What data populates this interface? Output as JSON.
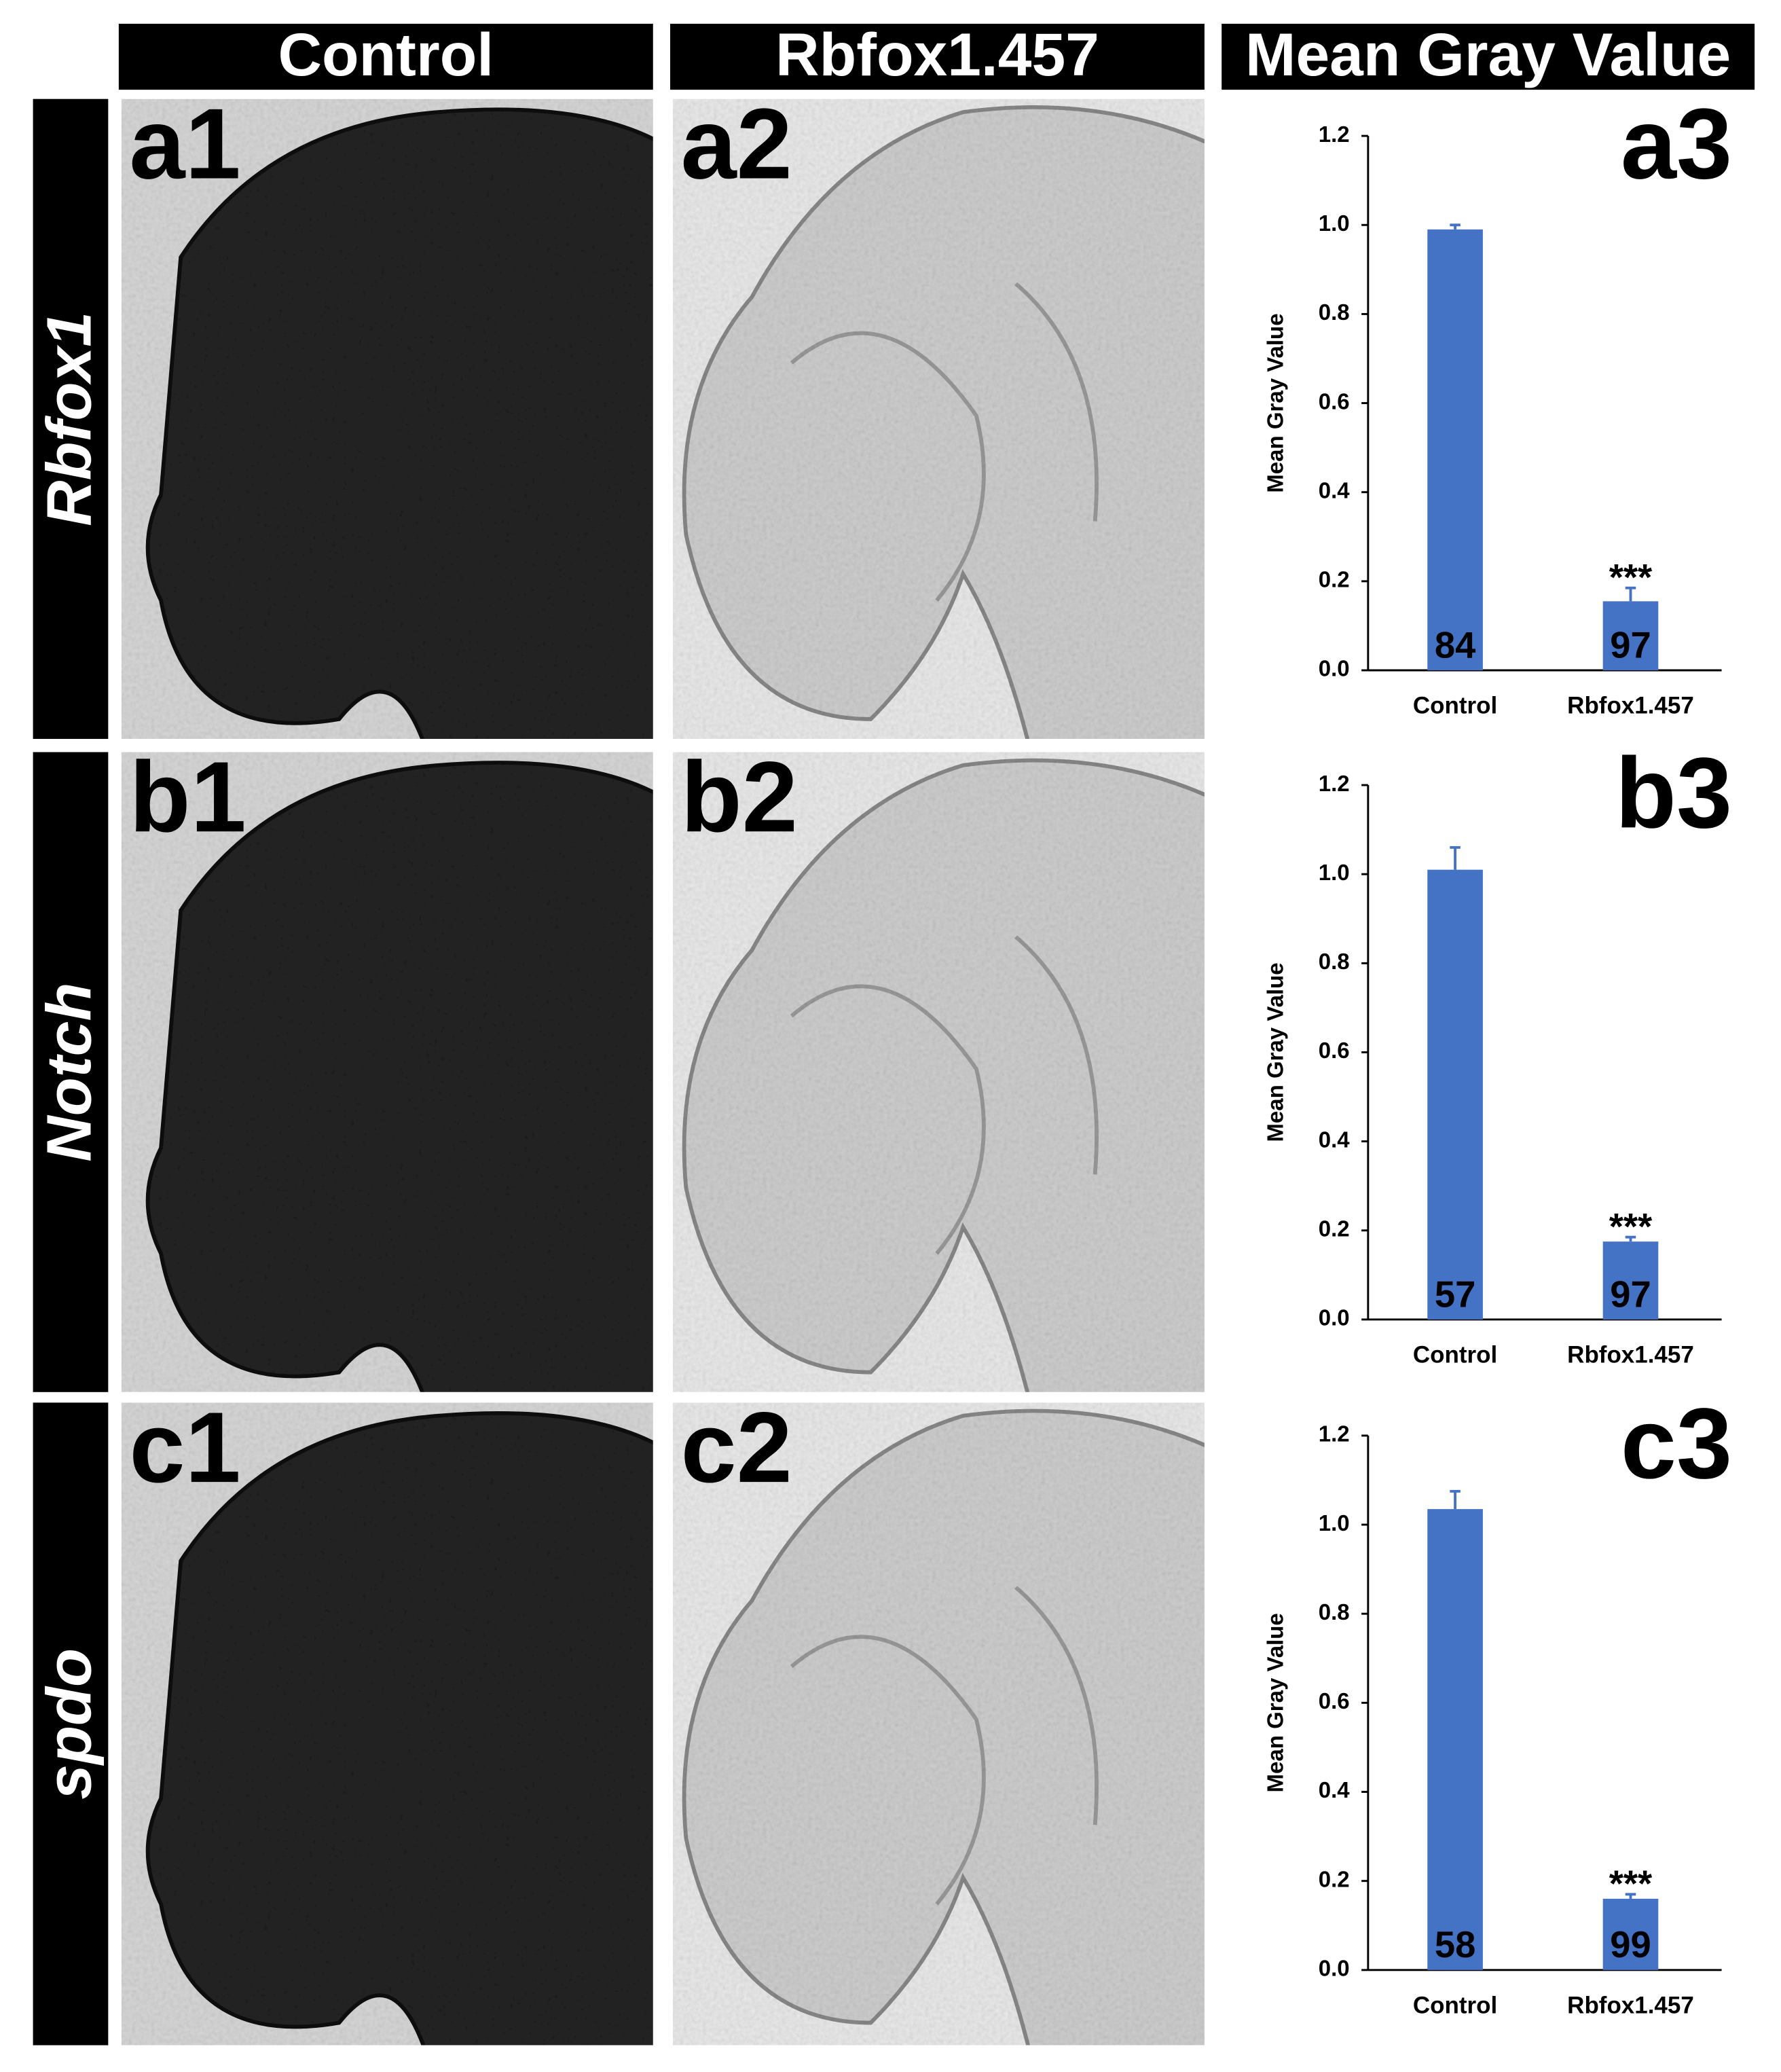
{
  "column_headers": [
    "Control",
    "Rbfox1.457",
    "Mean Gray Value"
  ],
  "rows": [
    {
      "label": "Rbfox1",
      "panels": [
        "a1",
        "a2"
      ]
    },
    {
      "label": "Notch",
      "panels": [
        "b1",
        "b2"
      ]
    },
    {
      "label": "spdo",
      "panels": [
        "c1",
        "c2"
      ]
    }
  ],
  "chart_data": [
    {
      "type": "bar",
      "panel": "a3",
      "y_label": "Mean Gray Value",
      "categories": [
        "Control",
        "Rbfox1.457"
      ],
      "values": [
        0.99,
        0.155
      ],
      "errors": [
        0.01,
        0.03
      ],
      "sample_sizes": [
        84,
        97
      ],
      "significance": [
        null,
        "***"
      ],
      "color": "#4472c4",
      "ylim": [
        0,
        1.2
      ],
      "yticks": [
        {
          "value": 0,
          "label": "0.0"
        },
        0.2,
        0.4,
        0.6,
        0.8,
        {
          "value": 1,
          "label": "1.0"
        },
        1.2
      ]
    },
    {
      "type": "bar",
      "panel": "b3",
      "y_label": "Mean Gray Value",
      "categories": [
        "Control",
        "Rbfox1.457"
      ],
      "values": [
        1.01,
        0.175
      ],
      "errors": [
        0.05,
        0.01
      ],
      "sample_sizes": [
        57,
        97
      ],
      "significance": [
        null,
        "***"
      ],
      "color": "#4472c4",
      "ylim": [
        0,
        1.2
      ],
      "yticks": [
        {
          "value": 0,
          "label": "0.0"
        },
        0.2,
        0.4,
        0.6,
        0.8,
        {
          "value": 1,
          "label": "1.0"
        },
        1.2
      ]
    },
    {
      "type": "bar",
      "panel": "c3",
      "y_label": "Mean Gray Value",
      "categories": [
        "Control",
        "Rbfox1.457"
      ],
      "values": [
        1.035,
        0.16
      ],
      "errors": [
        0.04,
        0.01
      ],
      "sample_sizes": [
        58,
        99
      ],
      "significance": [
        null,
        "***"
      ],
      "color": "#4472c4",
      "ylim": [
        0,
        1.2
      ],
      "yticks": [
        {
          "value": 0,
          "label": "0.0"
        },
        0.2,
        0.4,
        0.6,
        0.8,
        {
          "value": 1,
          "label": "1.0"
        },
        1.2
      ]
    }
  ]
}
